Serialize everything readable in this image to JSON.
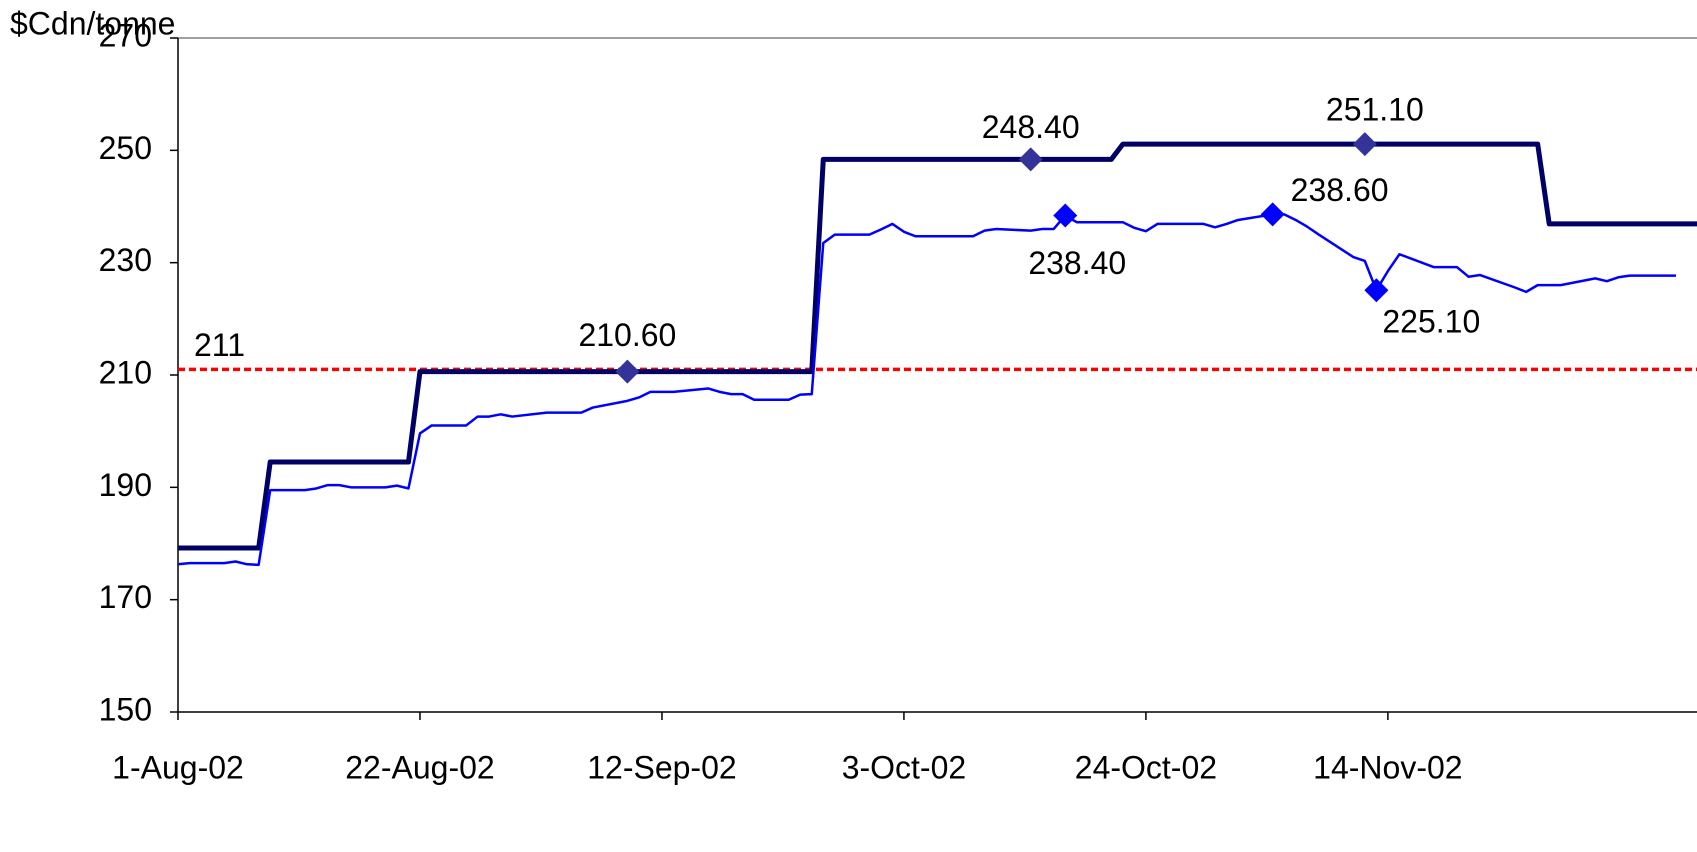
{
  "chart_data": {
    "type": "line",
    "y_label": "$Cdn/tonne",
    "ylim": [
      150,
      270
    ],
    "yticks": [
      150,
      170,
      190,
      210,
      230,
      250,
      270
    ],
    "xlim": [
      "2002-08-01",
      "2002-12-11"
    ],
    "xticks": [
      {
        "value": "2002-08-01",
        "label": "1-Aug-02"
      },
      {
        "value": "2002-08-22",
        "label": "22-Aug-02"
      },
      {
        "value": "2002-09-12",
        "label": "12-Sep-02"
      },
      {
        "value": "2002-10-03",
        "label": "3-Oct-02"
      },
      {
        "value": "2002-10-24",
        "label": "24-Oct-02"
      },
      {
        "value": "2002-11-14",
        "label": "14-Nov-02"
      }
    ],
    "reference_line": {
      "value": 211,
      "color": "#ff0000"
    },
    "series": [
      {
        "color": "#000066",
        "width": 5,
        "x": [
          "2002-08-01",
          "2002-08-08",
          "2002-08-09",
          "2002-08-21",
          "2002-08-22",
          "2002-09-25",
          "2002-09-26",
          "2002-10-21",
          "2002-10-22",
          "2002-11-27",
          "2002-11-28",
          "2002-12-11"
        ],
        "values": [
          179.2,
          179.2,
          194.5,
          194.5,
          210.6,
          210.6,
          248.4,
          248.4,
          251.1,
          251.1,
          236.9,
          236.9
        ],
        "markers": {
          "color": "#333399",
          "x": [
            "2002-09-09",
            "2002-10-14",
            "2002-11-12"
          ],
          "values": [
            210.6,
            248.4,
            251.1
          ],
          "value_labels": [
            "210.60",
            "248.40",
            "251.10"
          ]
        }
      },
      {
        "color": "#0000ff",
        "width": 2.5,
        "x": [
          "2002-08-01",
          "2002-08-02",
          "2002-08-05",
          "2002-08-06",
          "2002-08-07",
          "2002-08-08",
          "2002-08-09",
          "2002-08-12",
          "2002-08-13",
          "2002-08-14",
          "2002-08-15",
          "2002-08-16",
          "2002-08-19",
          "2002-08-20",
          "2002-08-21",
          "2002-08-22",
          "2002-08-23",
          "2002-08-26",
          "2002-08-27",
          "2002-08-28",
          "2002-08-29",
          "2002-08-30",
          "2002-09-02",
          "2002-09-03",
          "2002-09-04",
          "2002-09-05",
          "2002-09-06",
          "2002-09-09",
          "2002-09-10",
          "2002-09-11",
          "2002-09-12",
          "2002-09-13",
          "2002-09-16",
          "2002-09-17",
          "2002-09-18",
          "2002-09-19",
          "2002-09-20",
          "2002-09-23",
          "2002-09-24",
          "2002-09-25",
          "2002-09-26",
          "2002-09-27",
          "2002-09-30",
          "2002-10-01",
          "2002-10-02",
          "2002-10-03",
          "2002-10-04",
          "2002-10-07",
          "2002-10-08",
          "2002-10-09",
          "2002-10-10",
          "2002-10-11",
          "2002-10-14",
          "2002-10-15",
          "2002-10-16",
          "2002-10-17",
          "2002-10-18",
          "2002-10-21",
          "2002-10-22",
          "2002-10-23",
          "2002-10-24",
          "2002-10-25",
          "2002-10-28",
          "2002-10-29",
          "2002-10-30",
          "2002-10-31",
          "2002-11-01",
          "2002-11-04",
          "2002-11-05",
          "2002-11-06",
          "2002-11-07",
          "2002-11-08",
          "2002-11-11",
          "2002-11-12",
          "2002-11-13",
          "2002-11-14",
          "2002-11-15",
          "2002-11-18",
          "2002-11-19",
          "2002-11-20",
          "2002-11-21",
          "2002-11-22",
          "2002-11-25",
          "2002-11-26",
          "2002-11-27",
          "2002-11-28",
          "2002-11-29",
          "2002-12-02",
          "2002-12-03",
          "2002-12-04",
          "2002-12-05",
          "2002-12-06",
          "2002-12-09"
        ],
        "values": [
          176.3,
          176.5,
          176.5,
          176.8,
          176.3,
          176.2,
          189.5,
          189.5,
          189.8,
          190.4,
          190.4,
          190,
          190,
          190.3,
          189.8,
          199.6,
          201,
          201,
          202.6,
          202.6,
          203,
          202.6,
          203.3,
          203.3,
          203.3,
          203.3,
          204.2,
          205.4,
          206,
          207,
          207,
          207,
          207.6,
          207,
          206.6,
          206.6,
          205.6,
          205.6,
          206.5,
          206.6,
          233.5,
          235,
          235,
          235.9,
          236.9,
          235.5,
          234.7,
          234.7,
          234.7,
          234.7,
          235.7,
          236,
          235.7,
          236,
          236,
          238.4,
          237.2,
          237.2,
          237.2,
          236.2,
          235.6,
          236.9,
          236.9,
          236.9,
          236.3,
          236.9,
          237.6,
          238.6,
          238.6,
          237.6,
          236.4,
          235,
          231,
          230.3,
          225.1,
          228.5,
          231.5,
          229.2,
          229.2,
          229.2,
          227.5,
          227.8,
          225.6,
          224.8,
          226,
          226,
          226,
          227.2,
          226.7,
          227.4,
          227.7,
          227.7,
          227.7
        ],
        "markers": {
          "color": "#0000ff",
          "x": [
            "2002-10-17",
            "2002-11-04",
            "2002-11-13"
          ],
          "values": [
            238.4,
            238.6,
            225.1
          ],
          "value_labels": [
            "238.40",
            "238.60",
            "225.10"
          ]
        }
      }
    ]
  }
}
